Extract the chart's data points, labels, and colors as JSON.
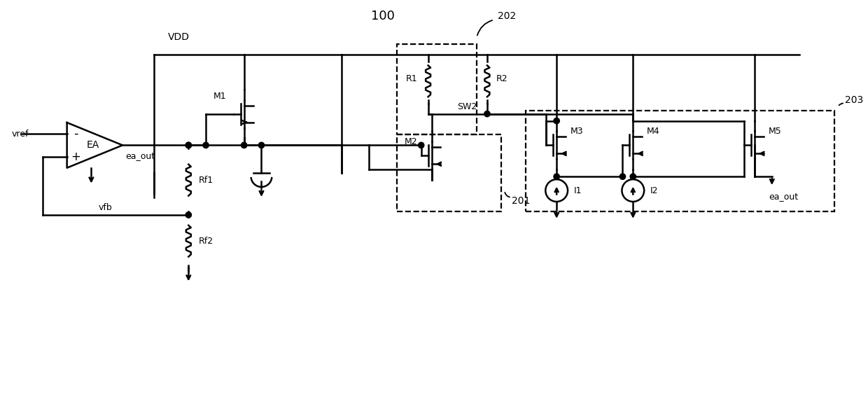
{
  "bg_color": "#ffffff",
  "lc": "#000000",
  "lw": 1.8,
  "dlw": 1.6,
  "labels": {
    "n100": "100",
    "n202": "202",
    "n203": "203",
    "n201": "201",
    "vdd": "VDD",
    "vref": "vref",
    "ea": "EA",
    "ea_out": "ea_out",
    "vfb": "vfb",
    "m1": "M1",
    "m2": "M2",
    "m3": "M3",
    "m4": "M4",
    "m5": "M5",
    "r1": "R1",
    "r2": "R2",
    "rf1": "Rf1",
    "rf2": "Rf2",
    "sw2": "SW2",
    "i1": "I1",
    "i2": "I2"
  }
}
